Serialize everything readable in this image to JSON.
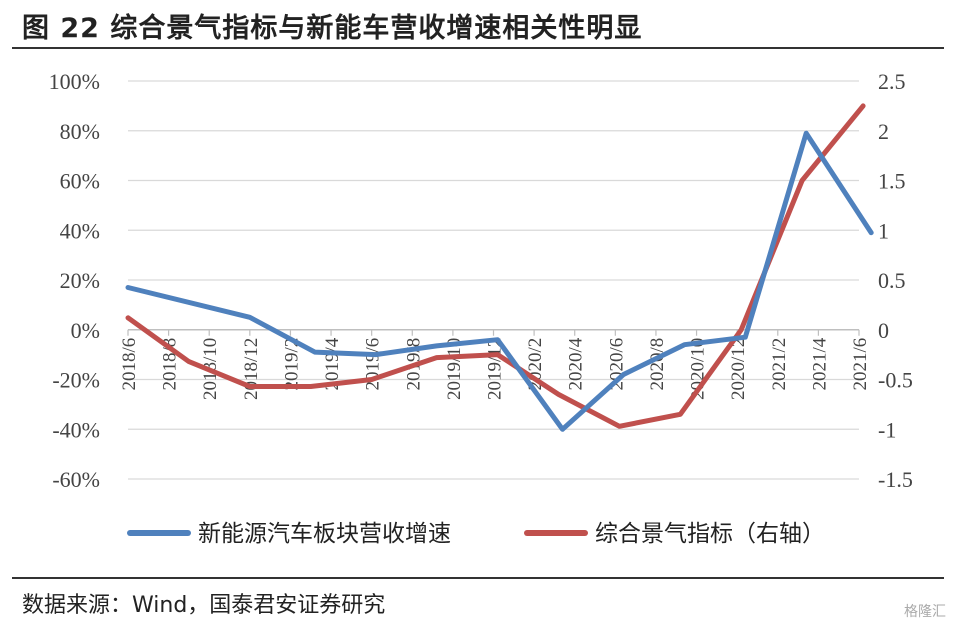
{
  "title": "图 22  综合景气指标与新能车营收增速相关性明显",
  "source": "数据来源：Wind，国泰君安证券研究",
  "watermark": "格隆汇",
  "chart_data": {
    "type": "line",
    "title": "图 22  综合景气指标与新能车营收增速相关性明显",
    "x": [
      "2018/6",
      "2018/8",
      "2018/10",
      "2018/12",
      "2019/2",
      "2019/4",
      "2019/6",
      "2019/8",
      "2019/10",
      "2019/12",
      "2020/2",
      "2020/4",
      "2020/6",
      "2020/8",
      "2020/10",
      "2020/12",
      "2021/2",
      "2021/4",
      "2021/6"
    ],
    "left_axis": {
      "ylim": [
        -60,
        100
      ],
      "ticks": [
        "100%",
        "80%",
        "60%",
        "40%",
        "20%",
        "0%",
        "-20%",
        "-40%",
        "-60%"
      ],
      "tick_values": [
        100,
        80,
        60,
        40,
        20,
        0,
        -20,
        -40,
        -60
      ]
    },
    "right_axis": {
      "ylim": [
        -1.5,
        2.5
      ],
      "ticks": [
        "2.5",
        "2",
        "1.5",
        "1",
        "0.5",
        "0",
        "-0.5",
        "-1",
        "-1.5"
      ],
      "tick_values": [
        2.5,
        2,
        1.5,
        1,
        0.5,
        0,
        -0.5,
        -1,
        -1.5
      ]
    },
    "series": [
      {
        "name": "新能源汽车板块营收增速",
        "axis": "left",
        "color": "#4f81bd",
        "points": [
          [
            0,
            17
          ],
          [
            3,
            5
          ],
          [
            4.6,
            -9
          ],
          [
            6.1,
            -10
          ],
          [
            7.6,
            -6.5
          ],
          [
            9.1,
            -4
          ],
          [
            10.7,
            -40
          ],
          [
            12.2,
            -18
          ],
          [
            13.7,
            -6
          ],
          [
            15.2,
            -3
          ],
          [
            16.7,
            79
          ],
          [
            18.3,
            39
          ]
        ]
      },
      {
        "name": "综合景气指标（右轴）",
        "axis": "right",
        "color": "#c0504d",
        "points": [
          [
            0,
            0.12
          ],
          [
            1.5,
            -0.32
          ],
          [
            3,
            -0.57
          ],
          [
            4.5,
            -0.57
          ],
          [
            6,
            -0.5
          ],
          [
            7.6,
            -0.28
          ],
          [
            9.1,
            -0.25
          ],
          [
            10.6,
            -0.65
          ],
          [
            12.1,
            -0.97
          ],
          [
            13.6,
            -0.85
          ],
          [
            15.1,
            0
          ],
          [
            16.6,
            1.5
          ],
          [
            18.1,
            2.25
          ]
        ]
      }
    ],
    "legend_position": "bottom"
  }
}
